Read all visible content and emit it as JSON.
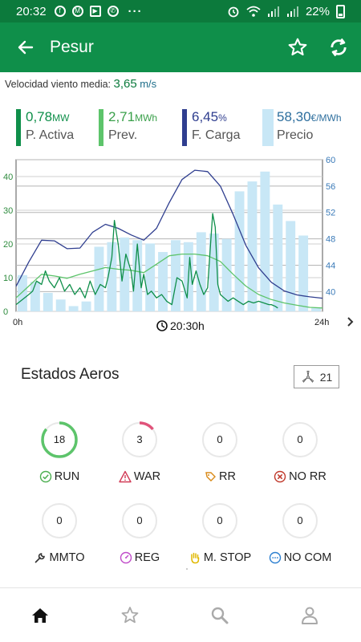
{
  "status_bar": {
    "time": "20:32",
    "notifications": [
      "facebook-icon",
      "gmail-icon",
      "feedly-icon",
      "whatsapp-icon"
    ],
    "more": "···",
    "battery": "22%"
  },
  "app_bar": {
    "title": "Pesur",
    "icons": [
      "back-arrow-icon",
      "star-outline-icon",
      "refresh-icon"
    ]
  },
  "wind": {
    "label": "Velocidad viento media:",
    "value": "3,65",
    "unit": "m/s"
  },
  "metrics": [
    {
      "value": "0,78",
      "unit": "MW",
      "label": "P. Activa",
      "color": "#0f8f4a"
    },
    {
      "value": "2,71",
      "unit": "MWh",
      "label": "Prev.",
      "color": "#5dc46b"
    },
    {
      "value": "6,45",
      "unit": "%",
      "label": "F. Carga",
      "color": "#2f3e8f"
    },
    {
      "value": "58,30",
      "unit": "€/MWh",
      "label": "Precio",
      "color": "#c8e7f6"
    }
  ],
  "chart_data": {
    "type": "bar",
    "left_axis": {
      "ticks": [
        "0",
        "10",
        "20",
        "30",
        "40"
      ],
      "range": [
        0,
        45
      ]
    },
    "right_axis": {
      "ticks": [
        "40",
        "44",
        "48",
        "52",
        "56",
        "60"
      ],
      "range": [
        37,
        60
      ]
    },
    "x_labels": {
      "start": "0h",
      "current": "20:30h",
      "end": "24h"
    },
    "grid": true,
    "series": [
      {
        "type": "bar",
        "axis": "right",
        "color": "#c8e7f6",
        "x": [
          0,
          1,
          2,
          3,
          4,
          5,
          6,
          7,
          8,
          9,
          10,
          11,
          12,
          13,
          14,
          15,
          16,
          17,
          18,
          19,
          20,
          21,
          22,
          23
        ],
        "values": [
          42.5,
          41.5,
          39.8,
          38.8,
          37.8,
          38.5,
          46.8,
          47.5,
          48.2,
          47.8,
          47.3,
          46.0,
          47.8,
          47.5,
          49.0,
          48.8,
          48.0,
          55.2,
          56.7,
          58.2,
          53.2,
          50.7,
          48.5,
          37.5
        ]
      },
      {
        "type": "line",
        "axis": "right",
        "color": "#2f3e8f",
        "x": [
          0,
          1,
          2,
          3,
          4,
          5,
          6,
          7,
          8,
          9,
          10,
          11,
          12,
          13,
          14,
          15,
          16,
          17,
          18,
          19,
          20,
          21,
          22,
          23,
          24
        ],
        "values": [
          40.8,
          44.5,
          47.8,
          47.7,
          46.5,
          46.6,
          49.0,
          50.2,
          49.6,
          48.6,
          47.8,
          49.6,
          53.5,
          57.0,
          58.4,
          58.2,
          56.0,
          51.7,
          47.0,
          43.6,
          41.4,
          40.1,
          39.5,
          39.2,
          39.0
        ]
      },
      {
        "type": "line",
        "axis": "left",
        "color": "#5dc46b",
        "x": [
          0,
          1,
          2,
          3,
          4,
          5,
          6,
          7,
          8,
          9,
          10,
          11,
          12,
          13,
          14,
          15,
          16,
          17,
          18,
          19,
          20,
          21,
          22,
          23,
          24
        ],
        "values": [
          4,
          7.5,
          11,
          10.5,
          9.8,
          11,
          12,
          13,
          12.5,
          12.2,
          11.5,
          14,
          16.5,
          17,
          17,
          16.5,
          14.8,
          11,
          7.5,
          5,
          3.5,
          2.5,
          1.8,
          1.2,
          1
        ]
      },
      {
        "type": "line",
        "axis": "left",
        "color": "#0f8f4a",
        "x": [
          0,
          0.5,
          1,
          1.3,
          1.6,
          2,
          2.3,
          2.6,
          3,
          3.4,
          3.8,
          4.2,
          4.6,
          5,
          5.4,
          5.8,
          6.2,
          6.6,
          7,
          7.2,
          7.5,
          7.7,
          8,
          8.3,
          8.6,
          9,
          9.2,
          9.5,
          9.8,
          10,
          10.3,
          10.6,
          11,
          11.4,
          11.8,
          12.2,
          12.6,
          13,
          13.4,
          13.6,
          13.8,
          14.1,
          14.4,
          14.7,
          15,
          15.2,
          15.4,
          15.6,
          15.8,
          16,
          16.3,
          16.6,
          17,
          17.4,
          17.8,
          18.2,
          18.6,
          19,
          19.4,
          19.8,
          20,
          20.3,
          20.5
        ],
        "values": [
          2,
          3.5,
          5,
          6,
          9,
          8,
          12,
          9,
          7,
          10,
          6,
          8,
          5,
          7,
          4,
          9,
          5,
          8,
          7,
          10,
          16,
          27,
          20,
          9,
          17,
          12,
          6,
          20,
          7,
          11,
          5,
          6,
          4,
          5,
          3,
          2,
          10,
          9,
          4,
          16,
          8,
          12,
          8,
          5,
          7,
          18,
          29,
          25,
          8,
          5,
          4,
          3,
          4,
          3,
          2,
          3,
          2.5,
          3,
          2.5,
          2,
          2,
          1.5,
          1
        ]
      }
    ]
  },
  "estados": {
    "title": "Estados Aeros",
    "total": "21",
    "total_icon": "wind-turbine-icon",
    "items": [
      {
        "count": "18",
        "label": "RUN",
        "icon": "check-circle-icon",
        "icon_color": "#4caf50",
        "ring_color": "#5dc46b",
        "fraction": 0.857
      },
      {
        "count": "3",
        "label": "WAR",
        "icon": "warning-triangle-icon",
        "icon_color": "#d13a56",
        "ring_color": "#e0537a",
        "fraction": 0.143
      },
      {
        "count": "0",
        "label": "RR",
        "icon": "tag-reset-icon",
        "icon_color": "#d98a18",
        "ring_color": "#e6e6e6",
        "fraction": 0
      },
      {
        "count": "0",
        "label": "NO RR",
        "icon": "cancel-circle-icon",
        "icon_color": "#c0392b",
        "ring_color": "#e6e6e6",
        "fraction": 0
      },
      {
        "count": "0",
        "label": "MMTO",
        "icon": "wrench-icon",
        "icon_color": "#333333",
        "ring_color": "#e6e6e6",
        "fraction": 0
      },
      {
        "count": "0",
        "label": "REG",
        "icon": "gauge-icon",
        "icon_color": "#c04bc9",
        "ring_color": "#e6e6e6",
        "fraction": 0
      },
      {
        "count": "0",
        "label": "M. STOP",
        "icon": "hand-stop-icon",
        "icon_color": "#e0b800",
        "ring_color": "#e6e6e6",
        "fraction": 0
      },
      {
        "count": "0",
        "label": "NO COM",
        "icon": "chat-dots-icon",
        "icon_color": "#2b7fd0",
        "ring_color": "#e6e6e6",
        "fraction": 0
      }
    ]
  },
  "bottom_nav": [
    "home-icon",
    "favorites-icon",
    "search-icon",
    "profile-icon"
  ]
}
